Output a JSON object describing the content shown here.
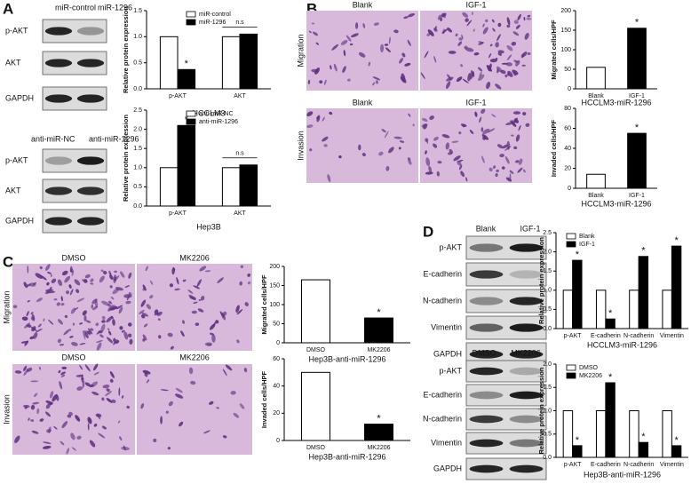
{
  "figure": {
    "panel_labels": [
      "A",
      "B",
      "C",
      "D"
    ],
    "blots": [
      {
        "columns": [
          "miR-control",
          "miR-1296"
        ],
        "rows": [
          "p-AKT",
          "AKT",
          "GAPDH"
        ]
      },
      {
        "columns": [
          "anti-miR-NC",
          "anti-miR-1296"
        ],
        "rows": [
          "p-AKT",
          "AKT",
          "GAPDH"
        ]
      },
      {
        "columns": [
          "Blank",
          "IGF-1"
        ],
        "rows": [
          "p-AKT",
          "E-cadherin",
          "N-cadherin",
          "Vimentin",
          "GAPDH"
        ]
      },
      {
        "columns": [
          "DMSO",
          "MK2206"
        ],
        "rows": [
          "p-AKT",
          "E-cadherin",
          "N-cadherin",
          "Vimentin",
          "GAPDH"
        ]
      }
    ],
    "micrographs": [
      {
        "row": "Migration",
        "columns": [
          "Blank",
          "IGF-1"
        ]
      },
      {
        "row": "Invasion",
        "columns": [
          "Blank",
          "IGF-1"
        ]
      },
      {
        "row": "Migration",
        "columns": [
          "DMSO",
          "MK2206"
        ]
      },
      {
        "row": "Invasion",
        "columns": [
          "DMSO",
          "MK2206"
        ]
      }
    ]
  },
  "chart_data": [
    {
      "type": "bar",
      "categories": [
        "p-AKT",
        "AKT"
      ],
      "series": [
        {
          "name": "miR-control",
          "color": "#ffffff",
          "values": [
            1,
            1
          ]
        },
        {
          "name": "miR-1296",
          "color": "#000000",
          "values": [
            0.37,
            1.05
          ],
          "annotations": [
            "*",
            null
          ]
        }
      ],
      "category_annotations": [
        null,
        "n.s"
      ],
      "ylim": [
        0,
        1.5
      ],
      "yticks": [
        {
          "value": 0,
          "label": "0.0"
        },
        0.5,
        {
          "value": 1,
          "label": "1.0"
        },
        1.5
      ],
      "ylabel": "Relative protein expression",
      "xlabel": "HCCLM3",
      "legend": "upper center"
    },
    {
      "type": "bar",
      "categories": [
        "p-AKT",
        "AKT"
      ],
      "series": [
        {
          "name": "anti-miR-NC",
          "color": "#ffffff",
          "values": [
            1,
            1
          ]
        },
        {
          "name": "anti-miR-1296",
          "color": "#000000",
          "values": [
            2.1,
            1.07
          ],
          "annotations": [
            "*",
            null
          ]
        }
      ],
      "category_annotations": [
        null,
        "n.s"
      ],
      "ylim": [
        0,
        2.5
      ],
      "yticks": [
        {
          "value": 0,
          "label": "0.0"
        },
        0.5,
        {
          "value": 1,
          "label": "1.0"
        },
        1.5,
        {
          "value": 2,
          "label": "2.0"
        },
        2.5
      ],
      "ylabel": "Relative protein expression",
      "xlabel": "Hep3B",
      "legend": "upper center"
    },
    {
      "type": "bar",
      "categories": [
        "Blank",
        "IGF-1"
      ],
      "values": [
        55,
        155
      ],
      "colors": [
        "#ffffff",
        "#000000"
      ],
      "annotations": [
        null,
        "*"
      ],
      "ylim": [
        0,
        200
      ],
      "yticks": [
        0,
        50,
        100,
        150,
        200
      ],
      "ylabel": "Migrated cells/HPF",
      "xlabel": "HCCLM3-miR-1296"
    },
    {
      "type": "bar",
      "categories": [
        "Blank",
        "IGF-1"
      ],
      "values": [
        14,
        55
      ],
      "colors": [
        "#ffffff",
        "#000000"
      ],
      "annotations": [
        null,
        "*"
      ],
      "ylim": [
        0,
        80
      ],
      "yticks": [
        0,
        20,
        40,
        60,
        80
      ],
      "ylabel": "Invaded cells/HPF",
      "xlabel": "HCCLM3-miR-1296"
    },
    {
      "type": "bar",
      "categories": [
        "DMSO",
        "MK2206"
      ],
      "values": [
        165,
        65
      ],
      "colors": [
        "#ffffff",
        "#000000"
      ],
      "annotations": [
        null,
        "*"
      ],
      "ylim": [
        0,
        200
      ],
      "yticks": [
        0,
        50,
        100,
        150,
        200
      ],
      "ylabel": "Migrated cells/HPF",
      "xlabel": "Hep3B-anti-miR-1296"
    },
    {
      "type": "bar",
      "categories": [
        "DMSO",
        "MK2206"
      ],
      "values": [
        50,
        12
      ],
      "colors": [
        "#ffffff",
        "#000000"
      ],
      "annotations": [
        null,
        "*"
      ],
      "ylim": [
        0,
        60
      ],
      "yticks": [
        0,
        20,
        40,
        60
      ],
      "ylabel": "Invaded cells/HPF",
      "xlabel": "Hep3B-anti-miR-1296"
    },
    {
      "type": "bar",
      "categories": [
        "p-AKT",
        "E-cadherin",
        "N-cadherin",
        "Vimentin"
      ],
      "series": [
        {
          "name": "Blank",
          "color": "#ffffff",
          "values": [
            1,
            1,
            1,
            1
          ]
        },
        {
          "name": "IGF-1",
          "color": "#000000",
          "values": [
            1.78,
            0.25,
            1.88,
            2.15
          ],
          "annotations": [
            "*",
            "*",
            "*",
            "*"
          ]
        }
      ],
      "ylim": [
        0,
        2.5
      ],
      "yticks": [
        {
          "value": 0,
          "label": "0.0"
        },
        0.5,
        {
          "value": 1,
          "label": "1.0"
        },
        1.5,
        {
          "value": 2,
          "label": "2.0"
        },
        2.5
      ],
      "ylabel": "Relative protein expression",
      "xlabel": "HCCLM3-miR-1296",
      "legend": "upper left"
    },
    {
      "type": "bar",
      "categories": [
        "p-AKT",
        "E-cadherin",
        "N-cadherin",
        "Vimentin"
      ],
      "series": [
        {
          "name": "DMSO",
          "color": "#ffffff",
          "values": [
            1,
            1,
            1,
            1
          ]
        },
        {
          "name": "MK2206",
          "color": "#000000",
          "values": [
            0.25,
            1.6,
            0.32,
            0.25
          ],
          "annotations": [
            "*",
            "*",
            "*",
            "*"
          ]
        }
      ],
      "ylim": [
        0,
        2
      ],
      "yticks": [
        {
          "value": 0,
          "label": "0.0"
        },
        0.5,
        {
          "value": 1,
          "label": "1.0"
        },
        1.5,
        {
          "value": 2,
          "label": "2.0"
        }
      ],
      "ylabel": "Relative protein expression",
      "xlabel": "Hep3B-anti-miR-1296",
      "legend": "upper left"
    }
  ]
}
